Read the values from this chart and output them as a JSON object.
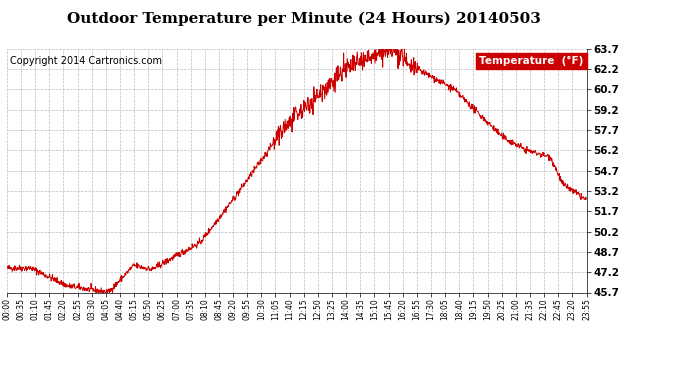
{
  "title": "Outdoor Temperature per Minute (24 Hours) 20140503",
  "copyright_text": "Copyright 2014 Cartronics.com",
  "legend_label": "Temperature  (°F)",
  "legend_bg": "#cc0000",
  "legend_fg": "#ffffff",
  "line_color": "#cc0000",
  "bg_color": "#ffffff",
  "grid_color": "#bbbbbb",
  "title_fontsize": 11,
  "copyright_fontsize": 7,
  "ylabel_right_values": [
    45.7,
    47.2,
    48.7,
    50.2,
    51.7,
    53.2,
    54.7,
    56.2,
    57.7,
    59.2,
    60.7,
    62.2,
    63.7
  ],
  "ymin": 45.7,
  "ymax": 63.7,
  "xtick_labels": [
    "00:00",
    "00:35",
    "01:10",
    "01:45",
    "02:20",
    "02:55",
    "03:30",
    "04:05",
    "04:40",
    "05:15",
    "05:50",
    "06:25",
    "07:00",
    "07:35",
    "08:10",
    "08:45",
    "09:20",
    "09:55",
    "10:30",
    "11:05",
    "11:40",
    "12:15",
    "12:50",
    "13:25",
    "14:00",
    "14:35",
    "15:10",
    "15:45",
    "16:20",
    "16:55",
    "17:30",
    "18:05",
    "18:40",
    "19:15",
    "19:50",
    "20:25",
    "21:00",
    "21:35",
    "22:10",
    "22:45",
    "23:20",
    "23:55"
  ]
}
